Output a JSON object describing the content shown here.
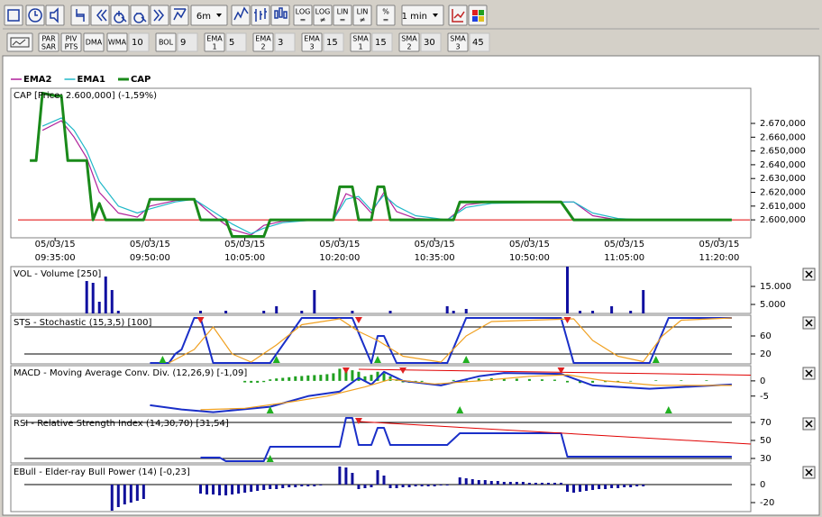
{
  "toolbar": {
    "period": "6m",
    "interval": "1 min",
    "scale_buttons": [
      [
        "LOG",
        "="
      ],
      [
        "LOG",
        "≠"
      ],
      [
        "LIN",
        "="
      ],
      [
        "LIN",
        "≠"
      ],
      [
        "%",
        "="
      ]
    ],
    "overlays": [
      [
        "PAR",
        "SAR"
      ],
      [
        "PIV",
        "PTS"
      ],
      [
        "DMA"
      ]
    ],
    "indicators": [
      {
        "label": [
          "WMA"
        ],
        "value": 10
      },
      {
        "label": [
          "BOL"
        ],
        "value": 9
      },
      {
        "label": [
          "EMA",
          "1"
        ],
        "value": 5
      },
      {
        "label": [
          "EMA",
          "2"
        ],
        "value": 3
      },
      {
        "label": [
          "EMA",
          "3"
        ],
        "value": 15
      },
      {
        "label": [
          "SMA",
          "1"
        ],
        "value": 15
      },
      {
        "label": [
          "SMA",
          "2"
        ],
        "value": 30
      },
      {
        "label": [
          "SMA",
          "3"
        ],
        "value": 45
      }
    ]
  },
  "chart_data": [
    {
      "type": "line",
      "title": "CAP [Price: 2.600,000] (-1,59%)",
      "xlim": [
        "09:28",
        "11:25"
      ],
      "xticks": [
        {
          "date": "05/03/15",
          "time": "09:35:00"
        },
        {
          "date": "05/03/15",
          "time": "09:50:00"
        },
        {
          "date": "05/03/15",
          "time": "10:05:00"
        },
        {
          "date": "05/03/15",
          "time": "10:20:00"
        },
        {
          "date": "05/03/15",
          "time": "10:35:00"
        },
        {
          "date": "05/03/15",
          "time": "10:50:00"
        },
        {
          "date": "05/03/15",
          "time": "11:05:00"
        },
        {
          "date": "05/03/15",
          "time": "11:20:00"
        }
      ],
      "ylim": [
        2587000,
        2695500
      ],
      "yticks": [
        {
          "value": 2600000,
          "label": "2.600,000"
        },
        {
          "value": 2610000,
          "label": "2.610,000"
        },
        {
          "value": 2620000,
          "label": "2.620,000"
        },
        {
          "value": 2630000,
          "label": "2.630,000"
        },
        {
          "value": 2640000,
          "label": "2.640,000"
        },
        {
          "value": 2650000,
          "label": "2.650,000"
        },
        {
          "value": 2660000,
          "label": "2.660,000"
        },
        {
          "value": 2670000,
          "label": "2.670,000"
        }
      ],
      "hline": 2600000,
      "hline_color": "#e00000",
      "series": [
        {
          "name": "EMA2",
          "color": "#b0209a",
          "x": [
            "09:33",
            "09:36",
            "09:38",
            "09:40",
            "09:42",
            "09:45",
            "09:48",
            "09:50",
            "09:54",
            "09:57",
            "10:00",
            "10:03",
            "10:06",
            "10:08",
            "10:11",
            "10:19",
            "10:21",
            "10:23",
            "10:25",
            "10:27",
            "10:29",
            "10:32",
            "10:37",
            "10:40",
            "10:44",
            "10:57",
            "11:00",
            "11:04",
            "11:22"
          ],
          "values": [
            2665000,
            2672000,
            2660000,
            2645000,
            2620000,
            2605000,
            2602000,
            2610000,
            2614000,
            2615000,
            2603000,
            2593000,
            2589000,
            2596000,
            2599000,
            2600000,
            2619000,
            2615000,
            2605000,
            2620000,
            2606000,
            2601000,
            2600000,
            2611000,
            2613000,
            2613000,
            2603000,
            2600000,
            2600000
          ]
        },
        {
          "name": "EMA1",
          "color": "#20b8c8",
          "x": [
            "09:33",
            "09:36",
            "09:38",
            "09:40",
            "09:42",
            "09:45",
            "09:48",
            "09:50",
            "09:54",
            "09:57",
            "10:00",
            "10:03",
            "10:06",
            "10:08",
            "10:11",
            "10:16",
            "10:19",
            "10:21",
            "10:23",
            "10:25",
            "10:27",
            "10:29",
            "10:32",
            "10:37",
            "10:40",
            "10:44",
            "10:57",
            "11:00",
            "11:04",
            "11:08",
            "11:22"
          ],
          "values": [
            2668000,
            2674000,
            2665000,
            2650000,
            2628000,
            2610000,
            2605000,
            2608000,
            2613000,
            2615000,
            2606000,
            2597000,
            2590000,
            2594000,
            2598000,
            2600000,
            2600000,
            2615000,
            2617000,
            2607000,
            2618000,
            2610000,
            2603000,
            2600000,
            2609000,
            2612000,
            2613000,
            2605000,
            2601000,
            2600000,
            2600000
          ]
        },
        {
          "name": "CAP",
          "color": "#1a8a1a",
          "line_width": 3,
          "x": [
            "09:31",
            "09:32",
            "09:33",
            "09:35",
            "09:36",
            "09:37",
            "09:40",
            "09:41",
            "09:42",
            "09:43",
            "09:49",
            "09:50",
            "09:57",
            "09:58",
            "10:02",
            "10:03",
            "10:08",
            "10:09",
            "10:19",
            "10:20",
            "10:22",
            "10:23",
            "10:25",
            "10:26",
            "10:27",
            "10:28",
            "10:38",
            "10:39",
            "10:55",
            "10:57",
            "11:22"
          ],
          "values": [
            2643000,
            2643000,
            2692000,
            2690000,
            2690000,
            2643000,
            2643000,
            2600000,
            2612000,
            2600000,
            2600000,
            2615000,
            2615000,
            2600000,
            2600000,
            2588000,
            2588000,
            2600000,
            2600000,
            2624000,
            2624000,
            2600000,
            2600000,
            2624000,
            2624000,
            2600000,
            2600000,
            2613000,
            2613000,
            2600000,
            2600000
          ]
        }
      ]
    },
    {
      "type": "bar",
      "title": "VOL - Volume [250]",
      "ylim": [
        0,
        26000
      ],
      "yticks": [
        {
          "value": 15000,
          "label": "15.000"
        },
        {
          "value": 5000,
          "label": "5.000"
        }
      ],
      "series": [
        {
          "color": "#1010a0",
          "x": [
            "09:40",
            "09:41",
            "09:42",
            "09:43",
            "09:44",
            "09:45",
            "09:58",
            "10:02",
            "10:08",
            "10:10",
            "10:14",
            "10:16",
            "10:22",
            "10:28",
            "10:37",
            "10:38",
            "10:40",
            "10:56",
            "10:58",
            "11:00",
            "11:03",
            "11:06",
            "11:08"
          ],
          "values": [
            18000,
            17000,
            6500,
            20500,
            13000,
            1500,
            1500,
            1500,
            1500,
            4000,
            1500,
            13000,
            1500,
            1500,
            4000,
            1500,
            2500,
            26000,
            1500,
            1500,
            4000,
            1500,
            13000
          ]
        }
      ]
    },
    {
      "type": "line",
      "title": "STS - Stochastic (15,3,5) [100]",
      "ylim": [
        -2,
        106
      ],
      "yticks": [
        60,
        20
      ],
      "levels": [
        20,
        80
      ],
      "series": [
        {
          "color": "#1a2fc8",
          "line_width": 2,
          "x": [
            "09:50",
            "09:53",
            "09:54",
            "09:55",
            "09:57",
            "09:58",
            "10:00",
            "10:09",
            "10:14",
            "10:22",
            "10:25",
            "10:26",
            "10:27",
            "10:29",
            "10:37",
            "10:40",
            "10:55",
            "10:57",
            "11:09",
            "11:12",
            "11:22"
          ],
          "values": [
            0,
            0,
            20,
            30,
            100,
            100,
            0,
            0,
            100,
            100,
            0,
            60,
            60,
            0,
            0,
            100,
            100,
            0,
            0,
            100,
            100
          ]
        },
        {
          "color": "#f0a020",
          "x": [
            "09:53",
            "09:57",
            "10:00",
            "10:03",
            "10:06",
            "10:10",
            "10:14",
            "10:20",
            "10:23",
            "10:26",
            "10:30",
            "10:36",
            "10:40",
            "10:44",
            "10:57",
            "11:00",
            "11:04",
            "11:08",
            "11:11",
            "11:14",
            "11:22"
          ],
          "values": [
            0,
            30,
            80,
            20,
            2,
            40,
            85,
            98,
            70,
            50,
            15,
            2,
            60,
            92,
            98,
            50,
            15,
            3,
            60,
            95,
            100
          ]
        }
      ],
      "sell_signals": [
        "09:58",
        "10:23",
        "10:56"
      ],
      "buy_signals": [
        "09:52",
        "10:10",
        "10:26",
        "10:40",
        "11:10"
      ]
    },
    {
      "type": "combo",
      "title": "MACD - Moving Average Conv. Div. (12,26,9) [-1,09]",
      "ylim": [
        -11,
        5
      ],
      "yticks": [
        0,
        -5
      ],
      "series": [
        {
          "kind": "bar",
          "color": "#20a020",
          "x": [
            "10:05",
            "10:06",
            "10:07",
            "10:08",
            "10:09",
            "10:10",
            "10:11",
            "10:12",
            "10:13",
            "10:14",
            "10:15",
            "10:16",
            "10:17",
            "10:18",
            "10:19",
            "10:20",
            "10:21",
            "10:22",
            "10:23",
            "10:24",
            "10:25",
            "10:26",
            "10:27",
            "10:28",
            "10:29",
            "10:30",
            "10:31",
            "10:32",
            "10:33",
            "10:38",
            "10:40",
            "10:42",
            "10:44",
            "10:46",
            "10:48",
            "10:50",
            "10:52",
            "10:54",
            "10:56",
            "10:58",
            "11:00",
            "11:02",
            "11:04",
            "11:06",
            "11:10",
            "11:14",
            "11:18"
          ],
          "values": [
            -0.5,
            -0.6,
            -0.6,
            -0.4,
            0.5,
            0.8,
            1,
            1.2,
            1.5,
            1.6,
            1.8,
            1.9,
            2,
            2.2,
            2.5,
            4,
            4,
            3.5,
            3,
            1.5,
            2,
            3,
            2.5,
            1.5,
            0.5,
            -0.5,
            -0.6,
            -0.5,
            -0.3,
            0.3,
            0.6,
            0.8,
            0.9,
            0.8,
            0.7,
            0.6,
            0.5,
            0.4,
            -0.5,
            -0.7,
            -0.6,
            -0.4,
            -0.3,
            -0.2,
            0.2,
            0.2,
            0.2
          ]
        },
        {
          "kind": "line",
          "color": "#1a2fc8",
          "line_width": 2,
          "x": [
            "09:50",
            "09:55",
            "10:00",
            "10:09",
            "10:15",
            "10:20",
            "10:23",
            "10:25",
            "10:27",
            "10:30",
            "10:36",
            "10:42",
            "10:46",
            "10:55",
            "11:00",
            "11:09",
            "11:22"
          ],
          "values": [
            -8,
            -9.4,
            -10.3,
            -8.5,
            -5,
            -3.5,
            1,
            -1.2,
            3,
            0,
            -1.5,
            1.5,
            2.6,
            2.3,
            -1.5,
            -2.6,
            -1.2
          ]
        },
        {
          "kind": "line",
          "color": "#f0a020",
          "x": [
            "09:58",
            "10:05",
            "10:12",
            "10:18",
            "10:24",
            "10:28",
            "10:35",
            "10:42",
            "10:50",
            "10:56",
            "11:02",
            "11:10",
            "11:22"
          ],
          "values": [
            -9.5,
            -9,
            -7,
            -5,
            -2,
            0.5,
            -1,
            0,
            1.5,
            2,
            0,
            -1.5,
            -1.5
          ]
        }
      ],
      "trendlines": [
        {
          "color": "#e00000",
          "x": [
            "10:23",
            "11:25"
          ],
          "values": [
            3.8,
            1.9
          ]
        }
      ],
      "sell_signals": [
        "10:21",
        "10:30",
        "10:55"
      ],
      "buy_signals": [
        "10:09",
        "10:39",
        "11:12"
      ]
    },
    {
      "type": "line",
      "title": "RSI - Relative Strength Index (14,30,70) [31,54]",
      "ylim": [
        25,
        77
      ],
      "yticks": [
        70,
        50,
        30
      ],
      "levels": [
        30,
        70
      ],
      "series": [
        {
          "color": "#1a2fc8",
          "line_width": 2,
          "x": [
            "09:58",
            "10:01",
            "10:02",
            "10:08",
            "10:09",
            "10:20",
            "10:21",
            "10:22",
            "10:23",
            "10:25",
            "10:26",
            "10:27",
            "10:28",
            "10:37",
            "10:39",
            "10:55",
            "10:56",
            "11:22"
          ],
          "values": [
            31,
            31,
            27,
            27,
            43,
            43,
            75,
            75,
            45,
            45,
            64,
            64,
            45,
            45,
            58,
            58,
            32,
            32
          ]
        }
      ],
      "trendlines": [
        {
          "color": "#e00000",
          "x": [
            "10:23",
            "11:25"
          ],
          "values": [
            71,
            46
          ]
        }
      ],
      "sell_signals": [
        "10:23"
      ],
      "buy_signals": [
        "10:09"
      ]
    },
    {
      "type": "bar",
      "title": "EBull - Elder-ray Bull Power (14) [-0,23]",
      "ylim": [
        -30,
        22
      ],
      "yticks": [
        0,
        -20
      ],
      "levels": [
        0
      ],
      "series": [
        {
          "color": "#10109a",
          "x": [
            "09:44",
            "09:45",
            "09:46",
            "09:47",
            "09:48",
            "09:49",
            "09:58",
            "09:59",
            "10:00",
            "10:01",
            "10:02",
            "10:03",
            "10:04",
            "10:05",
            "10:06",
            "10:07",
            "10:08",
            "10:09",
            "10:10",
            "10:11",
            "10:12",
            "10:13",
            "10:14",
            "10:15",
            "10:16",
            "10:17",
            "10:20",
            "10:21",
            "10:22",
            "10:23",
            "10:24",
            "10:25",
            "10:26",
            "10:27",
            "10:28",
            "10:29",
            "10:30",
            "10:31",
            "10:32",
            "10:33",
            "10:34",
            "10:35",
            "10:36",
            "10:37",
            "10:39",
            "10:40",
            "10:41",
            "10:42",
            "10:43",
            "10:44",
            "10:45",
            "10:46",
            "10:47",
            "10:48",
            "10:49",
            "10:50",
            "10:51",
            "10:52",
            "10:53",
            "10:54",
            "10:55",
            "10:56",
            "10:57",
            "10:58",
            "10:59",
            "11:00",
            "11:01",
            "11:02",
            "11:03",
            "11:04",
            "11:05",
            "11:06",
            "11:07",
            "11:08"
          ],
          "values": [
            -29,
            -25,
            -22,
            -20,
            -18,
            -16,
            -10,
            -11,
            -11,
            -12,
            -12,
            -11,
            -10,
            -9,
            -8,
            -7,
            -6,
            -5,
            -5,
            -4,
            -3,
            -3,
            -2,
            -2,
            -2,
            -1,
            20,
            19,
            13,
            -5,
            -4,
            -3,
            16,
            10,
            -4,
            -4,
            -3,
            -3,
            -2,
            -2,
            -2,
            -2,
            -1,
            -1,
            8,
            7,
            6,
            5,
            5,
            4,
            4,
            3,
            3,
            3,
            3,
            2,
            2,
            2,
            2,
            2,
            2,
            -8,
            -9,
            -8,
            -7,
            -6,
            -5,
            -5,
            -4,
            -4,
            -3,
            -3,
            -2,
            -2
          ]
        }
      ]
    }
  ]
}
